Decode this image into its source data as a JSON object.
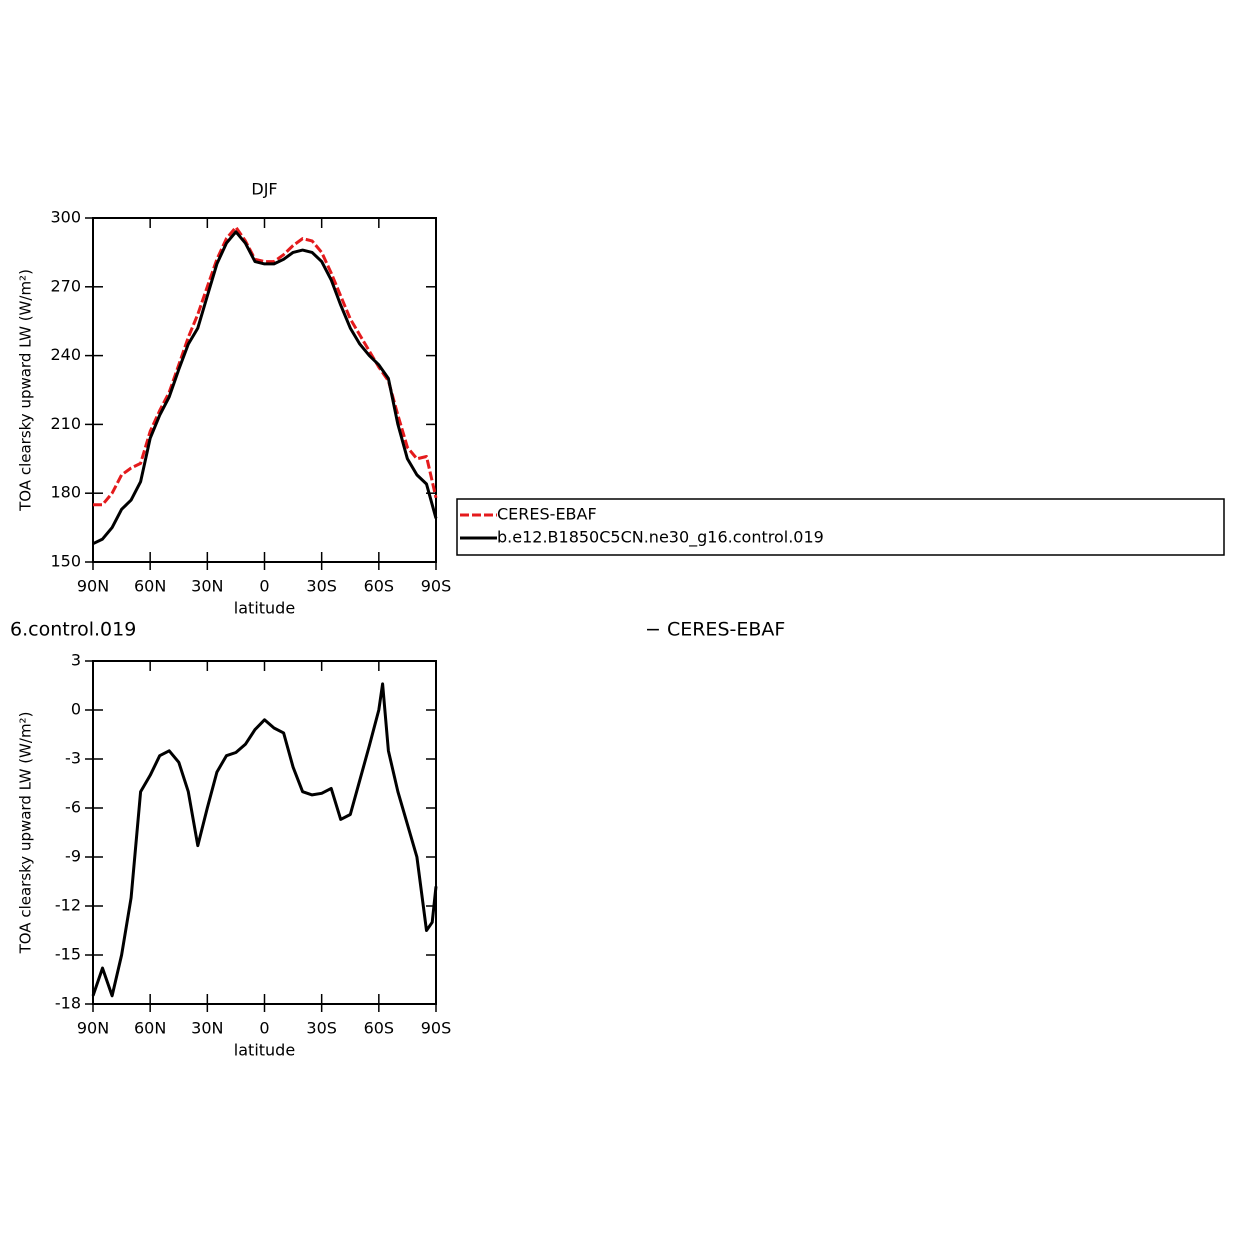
{
  "chart_data": [
    {
      "type": "line",
      "title": "DJF",
      "xlabel": "latitude",
      "ylabel": "TOA clearsky upward LW (W/m²)",
      "x": [
        90,
        85,
        80,
        75,
        70,
        65,
        60,
        55,
        50,
        45,
        40,
        35,
        30,
        25,
        20,
        15,
        10,
        5,
        0,
        -5,
        -10,
        -15,
        -20,
        -25,
        -30,
        -35,
        -40,
        -45,
        -50,
        -55,
        -60,
        -65,
        -70,
        -75,
        -80,
        -85,
        -90
      ],
      "series": [
        {
          "name": "CERES-EBAF",
          "color": "#e41a1c",
          "dash": true,
          "values": [
            175,
            175,
            180,
            188,
            191,
            193,
            207,
            216,
            224,
            236,
            248,
            258,
            270,
            282,
            291,
            296,
            290,
            282,
            281,
            281,
            284,
            288,
            291,
            290,
            285,
            276,
            266,
            256,
            249,
            242,
            235,
            229,
            214,
            200,
            195,
            196,
            178
          ]
        },
        {
          "name": "b.e12.B1850C5CN.ne30_g16.control.019",
          "color": "#000000",
          "dash": false,
          "values": [
            158,
            160,
            165,
            173,
            177,
            185,
            204,
            214,
            222,
            234,
            245,
            252,
            266,
            280,
            289,
            294,
            289,
            281,
            280,
            280,
            282,
            285,
            286,
            285,
            281,
            273,
            262,
            252,
            245,
            240,
            236,
            230,
            210,
            195,
            188,
            184,
            169
          ]
        }
      ],
      "xlim": [
        90,
        -90
      ],
      "xticks": [
        {
          "value": 90,
          "label": "90N"
        },
        {
          "value": 60,
          "label": "60N"
        },
        {
          "value": 30,
          "label": "30N"
        },
        0,
        {
          "value": -30,
          "label": "30S"
        },
        {
          "value": -60,
          "label": "60S"
        },
        {
          "value": -90,
          "label": "90S"
        }
      ],
      "ylim": [
        150,
        300
      ],
      "yticks": [
        150,
        180,
        210,
        240,
        270,
        300
      ],
      "legend": "right"
    },
    {
      "type": "line",
      "title_parts": [
        "6.control.019",
        "− CERES-EBAF"
      ],
      "xlabel": "latitude",
      "ylabel": "TOA clearsky upward LW (W/m²)",
      "x": [
        90,
        85,
        80,
        75,
        70,
        65,
        60,
        55,
        50,
        45,
        40,
        35,
        30,
        25,
        20,
        15,
        10,
        5,
        0,
        -5,
        -10,
        -15,
        -20,
        -25,
        -30,
        -35,
        -40,
        -45,
        -50,
        -55,
        -60,
        -62,
        -65,
        -70,
        -75,
        -80,
        -85,
        -88,
        -90
      ],
      "series": [
        {
          "color": "#000000",
          "dash": false,
          "values": [
            -17.5,
            -15.8,
            -17.5,
            -15,
            -11.5,
            -5,
            -4,
            -2.8,
            -2.5,
            -3.2,
            -5,
            -8.3,
            -6,
            -3.8,
            -2.8,
            -2.6,
            -2.1,
            -1.2,
            -0.6,
            -1.1,
            -1.4,
            -3.5,
            -5,
            -5.2,
            -5.1,
            -4.8,
            -6.7,
            -6.4,
            -4.3,
            -2.2,
            0,
            1.6,
            -2.5,
            -5,
            -7,
            -9,
            -13.5,
            -13,
            -10.8
          ]
        }
      ],
      "xlim": [
        90,
        -90
      ],
      "xticks": [
        {
          "value": 90,
          "label": "90N"
        },
        {
          "value": 60,
          "label": "60N"
        },
        {
          "value": 30,
          "label": "30N"
        },
        0,
        {
          "value": -30,
          "label": "30S"
        },
        {
          "value": -60,
          "label": "60S"
        },
        {
          "value": -90,
          "label": "90S"
        }
      ],
      "ylim": [
        -18,
        3
      ],
      "yticks": [
        -18,
        -15,
        -12,
        -9,
        -6,
        -3,
        0,
        3
      ]
    }
  ]
}
